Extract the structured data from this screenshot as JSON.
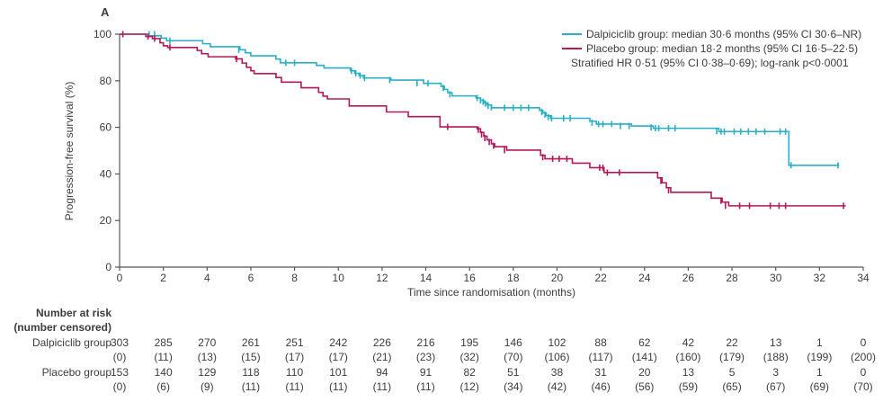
{
  "figure": {
    "panel_label": "A",
    "text_color": "#3c3c3c",
    "axis_color": "#55565a"
  },
  "legend": {
    "position": "top-right",
    "items": [
      {
        "label": "Dalpiciclib group: median 30·6 months (95% CI 30·6–NR)",
        "color": "#2aafc5"
      },
      {
        "label": "Placebo group: median 18·2 months (95% CI 16·5–22·5)",
        "color": "#b2185b"
      }
    ],
    "note": "Stratified HR 0·51 (95% CI 0·38–0·69); log-rank p<0·0001"
  },
  "chart_data": {
    "type": "line",
    "subtype": "kaplan-meier-step",
    "title": "",
    "xlabel": "Time since randomisation (months)",
    "ylabel": "Progression-free survival (%)",
    "xlim": [
      0,
      34
    ],
    "ylim": [
      0,
      100
    ],
    "xticks": [
      0,
      2,
      4,
      6,
      8,
      10,
      12,
      14,
      16,
      18,
      20,
      22,
      24,
      26,
      28,
      30,
      32,
      34
    ],
    "yticks": [
      0,
      20,
      40,
      60,
      80,
      100
    ],
    "grid": false,
    "legend_position": "top-right",
    "series": [
      {
        "name": "Dalpiciclib group",
        "slug": "dalpiciclib-group",
        "color": "#2aafc5",
        "median_months": "30·6",
        "ci": "30·6–NR",
        "end_time": 32.9,
        "steps": [
          [
            0,
            100
          ],
          [
            1.3,
            99.3
          ],
          [
            1.9,
            98.3
          ],
          [
            2.15,
            97.2
          ],
          [
            3.8,
            95.9
          ],
          [
            4.15,
            94.6
          ],
          [
            5.5,
            93.3
          ],
          [
            5.75,
            92
          ],
          [
            6,
            90.7
          ],
          [
            7.15,
            89.3
          ],
          [
            7.35,
            87.7
          ],
          [
            9,
            86.6
          ],
          [
            9.35,
            85.5
          ],
          [
            10.55,
            84.3
          ],
          [
            10.75,
            83.2
          ],
          [
            10.95,
            82.2
          ],
          [
            11.15,
            81.2
          ],
          [
            12.4,
            80.3
          ],
          [
            13.9,
            78.9
          ],
          [
            14.7,
            77.6
          ],
          [
            14.85,
            76.3
          ],
          [
            15,
            74.9
          ],
          [
            15.2,
            73.5
          ],
          [
            16.3,
            72.6
          ],
          [
            16.5,
            71.6
          ],
          [
            16.65,
            70.6
          ],
          [
            16.8,
            69.6
          ],
          [
            17,
            68.4
          ],
          [
            19.2,
            67.3
          ],
          [
            19.35,
            66.2
          ],
          [
            19.5,
            65
          ],
          [
            19.7,
            63.9
          ],
          [
            21.5,
            62.6
          ],
          [
            21.8,
            61.4
          ],
          [
            23.4,
            60.6
          ],
          [
            24.4,
            59.6
          ],
          [
            27.4,
            58.2
          ],
          [
            30.6,
            43.7
          ]
        ],
        "censors": [
          [
            1.35,
            100
          ],
          [
            1.6,
            100
          ],
          [
            2.3,
            97.2
          ],
          [
            5.45,
            93.3
          ],
          [
            7.6,
            87.7
          ],
          [
            8,
            87.7
          ],
          [
            10.6,
            84.3
          ],
          [
            10.8,
            83.2
          ],
          [
            11,
            82.2
          ],
          [
            11.2,
            81.2
          ],
          [
            12.35,
            80.3
          ],
          [
            13.6,
            78.9
          ],
          [
            14.1,
            78.9
          ],
          [
            14.8,
            76.9
          ],
          [
            15.1,
            74.2
          ],
          [
            16.35,
            72.6
          ],
          [
            16.5,
            71.6
          ],
          [
            16.62,
            71
          ],
          [
            16.72,
            70.2
          ],
          [
            16.85,
            69.3
          ],
          [
            17,
            68.6
          ],
          [
            17.6,
            68.4
          ],
          [
            18,
            68.4
          ],
          [
            18.35,
            68.4
          ],
          [
            18.7,
            68.4
          ],
          [
            19.3,
            66.6
          ],
          [
            19.45,
            65.5
          ],
          [
            19.6,
            64.4
          ],
          [
            19.75,
            63.9
          ],
          [
            20.3,
            63.9
          ],
          [
            20.6,
            63.9
          ],
          [
            21.6,
            62
          ],
          [
            21.9,
            61.4
          ],
          [
            22.1,
            61.4
          ],
          [
            22.5,
            61.4
          ],
          [
            22.9,
            60.6
          ],
          [
            23.3,
            60.6
          ],
          [
            24.3,
            60
          ],
          [
            24.5,
            59.6
          ],
          [
            24.65,
            59.6
          ],
          [
            25.1,
            59.6
          ],
          [
            25.4,
            59.6
          ],
          [
            27.3,
            58.4
          ],
          [
            27.5,
            58.2
          ],
          [
            27.65,
            58.2
          ],
          [
            28.1,
            58.2
          ],
          [
            28.4,
            58.2
          ],
          [
            28.75,
            58.2
          ],
          [
            29.1,
            58.2
          ],
          [
            29.5,
            58.2
          ],
          [
            30.2,
            58.2
          ],
          [
            30.45,
            58.2
          ],
          [
            30.7,
            43.7
          ],
          [
            32.85,
            43.7
          ]
        ]
      },
      {
        "name": "Placebo group",
        "slug": "placebo-group",
        "color": "#b2185b",
        "median_months": "18·2",
        "ci": "16·5–22·5",
        "end_time": 33.2,
        "steps": [
          [
            0,
            100
          ],
          [
            1.2,
            99
          ],
          [
            1.5,
            98.1
          ],
          [
            1.85,
            96.3
          ],
          [
            2,
            95
          ],
          [
            2.2,
            94.3
          ],
          [
            3.55,
            93
          ],
          [
            3.75,
            91.6
          ],
          [
            4.05,
            90.3
          ],
          [
            5.3,
            89.4
          ],
          [
            5.6,
            87.6
          ],
          [
            5.8,
            85.8
          ],
          [
            6,
            84.3
          ],
          [
            6.15,
            83.1
          ],
          [
            7.15,
            81.4
          ],
          [
            7.4,
            79.4
          ],
          [
            8.3,
            77
          ],
          [
            9.1,
            75
          ],
          [
            9.3,
            73.4
          ],
          [
            9.5,
            72.2
          ],
          [
            10.5,
            69.2
          ],
          [
            12.2,
            66.6
          ],
          [
            13.2,
            64.6
          ],
          [
            14.65,
            60.2
          ],
          [
            16.35,
            59.4
          ],
          [
            16.5,
            57.8
          ],
          [
            16.65,
            56.2
          ],
          [
            16.8,
            54.6
          ],
          [
            17,
            52.9
          ],
          [
            17.15,
            51.7
          ],
          [
            17.7,
            50.2
          ],
          [
            19.25,
            48
          ],
          [
            19.45,
            46.5
          ],
          [
            20.7,
            44.6
          ],
          [
            21.5,
            42.7
          ],
          [
            22.15,
            40.6
          ],
          [
            24.6,
            38.3
          ],
          [
            24.8,
            36.2
          ],
          [
            25,
            34.1
          ],
          [
            25.2,
            32.1
          ],
          [
            27.05,
            29.6
          ],
          [
            27.55,
            27.9
          ],
          [
            27.85,
            26.3
          ]
        ],
        "censors": [
          [
            0.15,
            100
          ],
          [
            1.3,
            99
          ],
          [
            1.6,
            98.1
          ],
          [
            2.3,
            94.3
          ],
          [
            5.35,
            89.4
          ],
          [
            15,
            60.2
          ],
          [
            16.4,
            59
          ],
          [
            16.55,
            57
          ],
          [
            16.7,
            55.4
          ],
          [
            16.9,
            53.7
          ],
          [
            17.1,
            52.1
          ],
          [
            17.6,
            50.2
          ],
          [
            19.35,
            47.2
          ],
          [
            19.8,
            46.5
          ],
          [
            20.1,
            46.5
          ],
          [
            20.45,
            46.5
          ],
          [
            21.95,
            42.7
          ],
          [
            22.1,
            42.7
          ],
          [
            22.3,
            40.6
          ],
          [
            22.85,
            40.6
          ],
          [
            24.75,
            37
          ],
          [
            25.1,
            33
          ],
          [
            27.5,
            28.5
          ],
          [
            27.7,
            26.3
          ],
          [
            28.35,
            26.3
          ],
          [
            28.8,
            26.3
          ],
          [
            29.75,
            26.3
          ],
          [
            30.15,
            26.3
          ],
          [
            30.45,
            26.3
          ],
          [
            33.1,
            26.3
          ]
        ]
      }
    ]
  },
  "risk_table": {
    "header_line1": "Number at risk",
    "header_line2": "(number censored)",
    "times": [
      0,
      2,
      4,
      6,
      8,
      10,
      12,
      14,
      16,
      18,
      20,
      22,
      24,
      26,
      28,
      30,
      32,
      34
    ],
    "rows": [
      {
        "label": "Dalpiciclib group",
        "at_risk": [
          303,
          285,
          270,
          261,
          251,
          242,
          226,
          216,
          195,
          146,
          102,
          88,
          62,
          42,
          22,
          13,
          1,
          0
        ],
        "censored": [
          0,
          11,
          13,
          15,
          17,
          17,
          21,
          23,
          32,
          70,
          106,
          117,
          141,
          160,
          179,
          188,
          199,
          200
        ]
      },
      {
        "label": "Placebo group",
        "at_risk": [
          153,
          140,
          129,
          118,
          110,
          101,
          94,
          91,
          82,
          51,
          38,
          31,
          20,
          13,
          5,
          3,
          1,
          0
        ],
        "censored": [
          0,
          6,
          9,
          11,
          11,
          11,
          11,
          11,
          12,
          34,
          42,
          46,
          56,
          59,
          65,
          67,
          69,
          70
        ]
      }
    ]
  }
}
